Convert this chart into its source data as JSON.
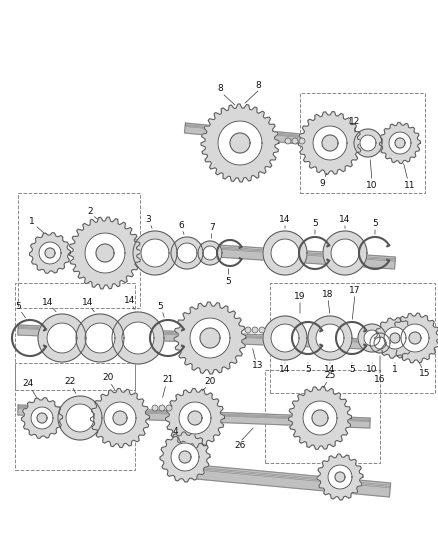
{
  "bg_color": "#ffffff",
  "gear_fill": "#d8d8d8",
  "gear_edge": "#555555",
  "ring_fill": "#d0d0d0",
  "shaft_fill": "#c0c0c0",
  "shaft_edge": "#888888",
  "label_color": "#111111",
  "dash_color": "#888888",
  "leader_color": "#333333",
  "label_fontsize": 6.5,
  "lw_gear": 0.7,
  "lw_shaft": 0.6,
  "lw_dash": 0.7,
  "lw_leader": 0.5
}
